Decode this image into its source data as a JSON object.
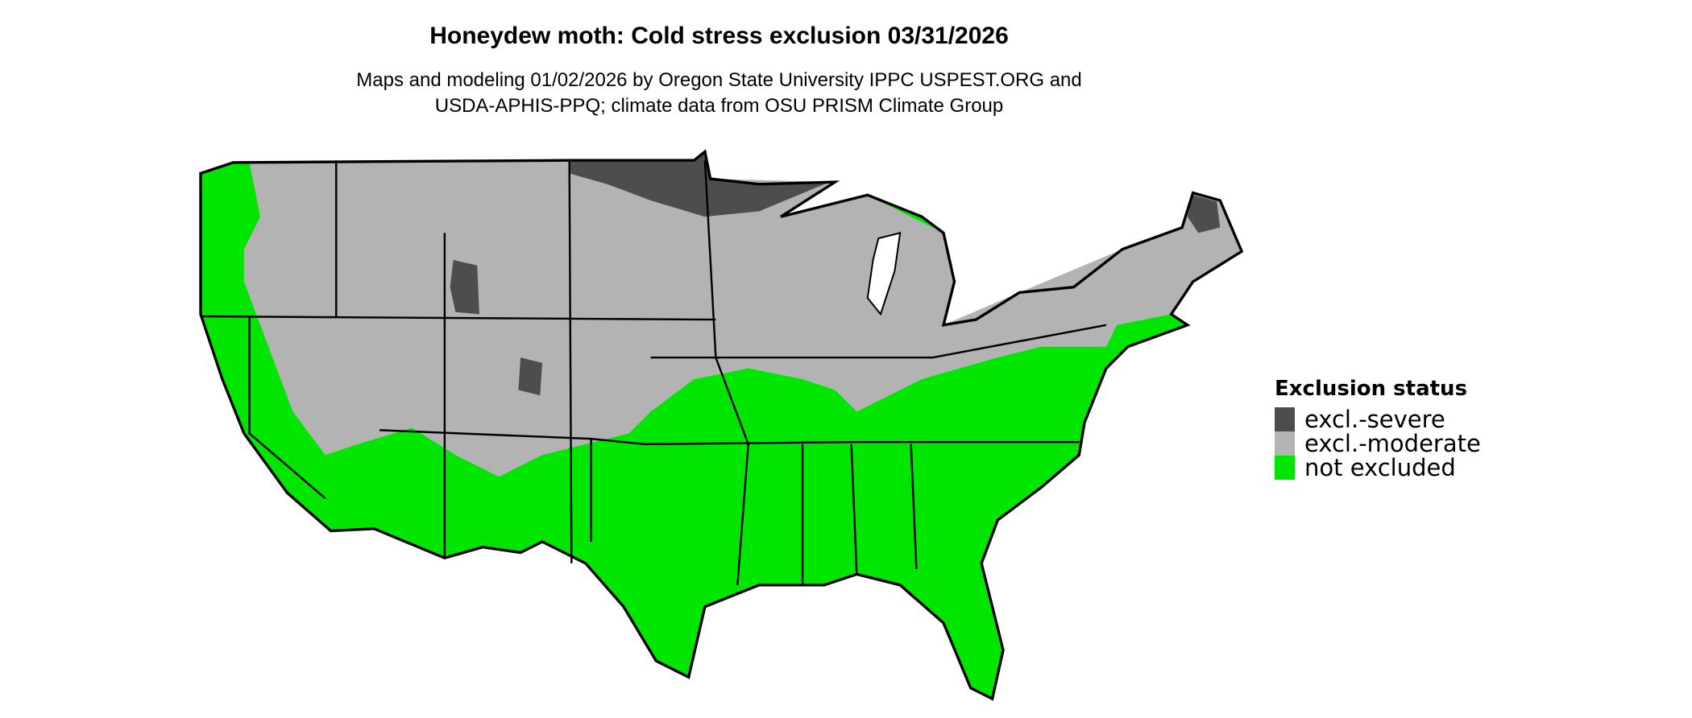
{
  "title": "Honeydew moth: Cold stress exclusion 03/31/2026",
  "subtitle_line1": "Maps and modeling 01/02/2026 by Oregon State University IPPC USPEST.ORG and",
  "subtitle_line2": "USDA-APHIS-PPQ; climate data from OSU PRISM Climate Group",
  "legend": {
    "title": "Exclusion status",
    "items": [
      {
        "label": "excl.-severe",
        "color": "#4d4d4d"
      },
      {
        "label": "excl.-moderate",
        "color": "#b3b3b3"
      },
      {
        "label": "not excluded",
        "color": "#00e600"
      }
    ]
  }
}
